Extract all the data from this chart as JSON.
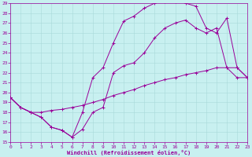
{
  "xlabel": "Windchill (Refroidissement éolien,°C)",
  "bg_color": "#c8f0f0",
  "grid_color": "#a8dada",
  "line_color": "#990099",
  "xlim": [
    0,
    23
  ],
  "ylim": [
    15,
    29
  ],
  "xticks": [
    0,
    1,
    2,
    3,
    4,
    5,
    6,
    7,
    8,
    9,
    10,
    11,
    12,
    13,
    14,
    15,
    16,
    17,
    18,
    19,
    20,
    21,
    22,
    23
  ],
  "yticks": [
    15,
    16,
    17,
    18,
    19,
    20,
    21,
    22,
    23,
    24,
    25,
    26,
    27,
    28,
    29
  ],
  "line1_x": [
    0,
    1,
    2,
    3,
    4,
    5,
    6,
    7,
    8,
    9,
    10,
    11,
    12,
    13,
    14,
    15,
    16,
    17,
    18,
    19,
    20,
    21,
    22,
    23
  ],
  "line1_y": [
    19.5,
    18.5,
    18.0,
    17.5,
    16.5,
    16.2,
    15.5,
    18.0,
    21.5,
    22.5,
    25.0,
    27.2,
    27.7,
    28.5,
    29.0,
    29.2,
    29.2,
    29.0,
    28.7,
    26.5,
    26.0,
    27.5,
    22.5,
    21.5
  ],
  "line2_x": [
    0,
    1,
    2,
    3,
    4,
    5,
    6,
    7,
    8,
    9,
    10,
    11,
    12,
    13,
    14,
    15,
    16,
    17,
    18,
    19,
    20,
    21,
    22,
    23
  ],
  "line2_y": [
    19.5,
    18.5,
    18.0,
    17.5,
    16.5,
    16.2,
    15.5,
    16.3,
    18.0,
    18.5,
    22.0,
    22.7,
    23.0,
    24.0,
    25.5,
    26.5,
    27.0,
    27.3,
    26.5,
    26.0,
    26.5,
    22.5,
    22.5,
    21.5
  ],
  "line3_x": [
    0,
    1,
    2,
    3,
    4,
    5,
    6,
    7,
    8,
    9,
    10,
    11,
    12,
    13,
    14,
    15,
    16,
    17,
    18,
    19,
    20,
    21,
    22,
    23
  ],
  "line3_y": [
    19.5,
    18.5,
    18.0,
    18.0,
    18.2,
    18.3,
    18.5,
    18.7,
    19.0,
    19.3,
    19.7,
    20.0,
    20.3,
    20.7,
    21.0,
    21.3,
    21.5,
    21.8,
    22.0,
    22.2,
    22.5,
    22.5,
    21.5,
    21.5
  ]
}
